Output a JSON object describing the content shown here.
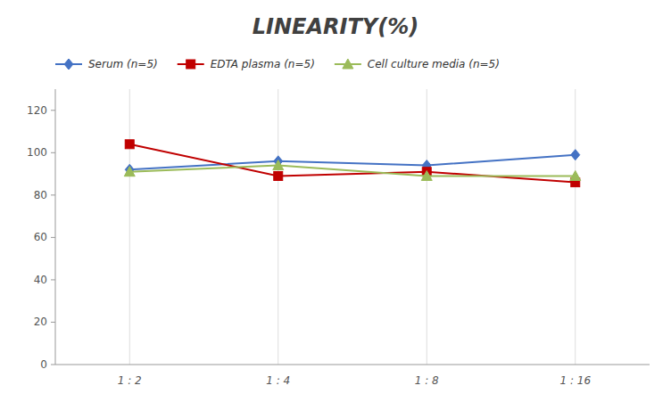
{
  "chart_data": {
    "type": "line",
    "title": "LINEARITY(%)",
    "categories": [
      "1 : 2",
      "1 : 4",
      "1 : 8",
      "1 : 16"
    ],
    "series": [
      {
        "name": "Serum (n=5)",
        "color": "#4472C4",
        "marker": "diamond",
        "line_style": "solid",
        "values": [
          92,
          96,
          94,
          99
        ]
      },
      {
        "name": "EDTA plasma (n=5)",
        "color": "#C00000",
        "marker": "square",
        "line_style": "solid",
        "values": [
          104,
          89,
          91,
          86
        ]
      },
      {
        "name": "Cell culture media (n=5)",
        "color": "#9BBB59",
        "marker": "triangle",
        "line_style": "solid",
        "values": [
          91,
          94,
          89,
          89
        ]
      }
    ],
    "ylim": [
      0,
      130
    ],
    "yticks": [
      0,
      20,
      40,
      60,
      80,
      100,
      120
    ],
    "grid": true,
    "legend": "top"
  }
}
